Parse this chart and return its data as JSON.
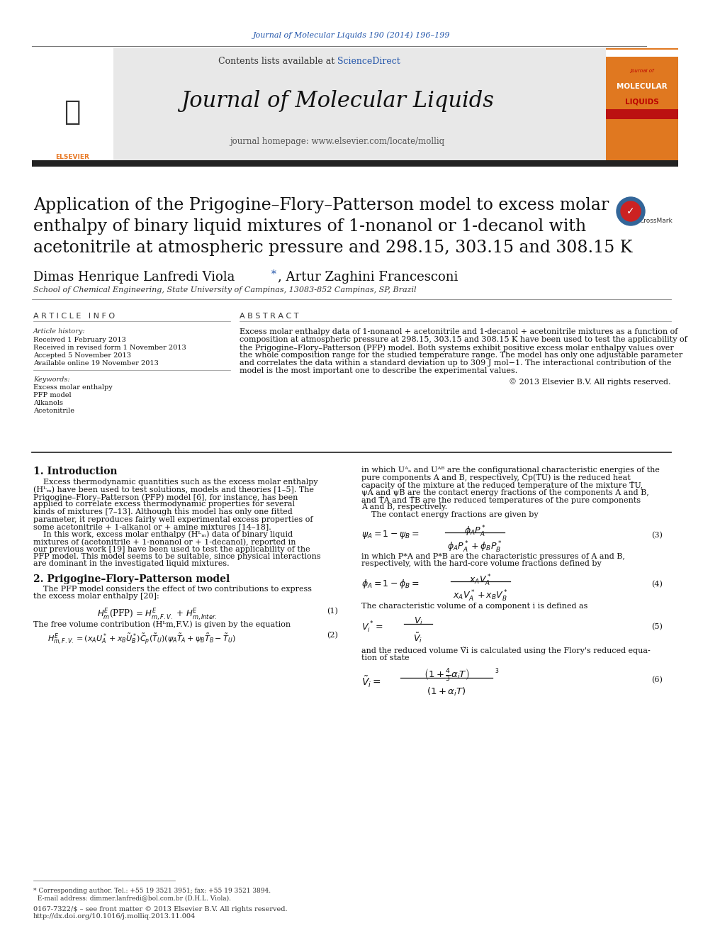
{
  "fig_width": 9.92,
  "fig_height": 13.23,
  "bg_color": "#ffffff",
  "journal_ref_text": "Journal of Molecular Liquids 190 (2014) 196–199",
  "journal_ref_color": "#2255aa",
  "journal_ref_fontsize": 8,
  "contents_text": "Contents lists available at ",
  "sciencedirect_text": "ScienceDirect",
  "sciencedirect_color": "#2255aa",
  "contents_fontsize": 9,
  "journal_title": "Journal of Molecular Liquids",
  "journal_title_fontsize": 22,
  "journal_homepage_text": "journal homepage: www.elsevier.com/locate/molliq",
  "journal_homepage_fontsize": 8.5,
  "header_bg_color": "#e8e8e8",
  "thick_bar_color": "#222222",
  "orange_box_color": "#e07820",
  "paper_title": "Application of the Prigogine–Flory–Patterson model to excess molar\nenthalpy of binary liquid mixtures of 1-nonanol or 1-decanol with\nacetonitrile at atmospheric pressure and 298.15, 303.15 and 308.15 K",
  "paper_title_fontsize": 17,
  "authors_fontsize": 13,
  "affiliation": "School of Chemical Engineering, State University of Campinas, 13083-852 Campinas, SP, Brazil",
  "affiliation_fontsize": 8,
  "article_info_label": "A R T I C L E   I N F O",
  "abstract_label": "A B S T R A C T",
  "section_label_fontsize": 8,
  "article_history_label": "Article history:",
  "history_items": [
    "Received 1 February 2013",
    "Received in revised form 1 November 2013",
    "Accepted 5 November 2013",
    "Available online 19 November 2013"
  ],
  "keywords_label": "Keywords:",
  "keywords": [
    "Excess molar enthalpy",
    "PFP model",
    "Alkanols",
    "Acetonitrile"
  ],
  "abstract_text": "Excess molar enthalpy data of 1-nonanol + acetonitrile and 1-decanol + acetonitrile mixtures as a function of\ncomposition at atmospheric pressure at 298.15, 303.15 and 308.15 K have been used to test the applicability of\nthe Prigogine–Flory–Patterson (PFP) model. Both systems exhibit positive excess molar enthalpy values over\nthe whole composition range for the studied temperature range. The model has only one adjustable parameter\nand correlates the data within a standard deviation up to 309 J mol−1. The interactional contribution of the\nmodel is the most important one to describe the experimental values.",
  "copyright_text": "© 2013 Elsevier B.V. All rights reserved.",
  "abstract_fontsize": 8,
  "intro_heading": "1. Introduction",
  "intro_heading_fontsize": 10,
  "intro_col1_lines": [
    "    Excess thermodynamic quantities such as the excess molar enthalpy",
    "(Hᴸₘ) have been used to test solutions, models and theories [1–5]. The",
    "Prigogine–Flory–Patterson (PFP) model [6], for instance, has been",
    "applied to correlate excess thermodynamic properties for several",
    "kinds of mixtures [7–13]. Although this model has only one fitted",
    "parameter, it reproduces fairly well experimental excess properties of",
    "some acetonitrile + 1-alkanol or + amine mixtures [14–18].",
    "    In this work, excess molar enthalpy (Hᴸₘ) data of binary liquid",
    "mixtures of (acetonitrile + 1-nonanol or + 1-decanol), reported in",
    "our previous work [19] have been used to test the applicability of the",
    "PFP model. This model seems to be suitable, since physical interactions",
    "are dominant in the investigated liquid mixtures."
  ],
  "intro_col2_lines": [
    "in which Uᴬₐ and Uᴬᴮ are the configurational characteristic energies of the",
    "pure components A and B, respectively, C̃p(T̃U) is the reduced heat",
    "capacity of the mixture at the reduced temperature of the mixture T̃U,",
    "ψA and ψB are the contact energy fractions of the components A and B,",
    "and T̃A and T̃B are the reduced temperatures of the pure components",
    "A and B, respectively.",
    "    The contact energy fractions are given by"
  ],
  "intro_fontsize": 8,
  "section2_heading": "2. Prigogine–Flory–Patterson model",
  "section2_heading_fontsize": 10,
  "section2_col1_lines": [
    "    The PFP model considers the effect of two contributions to express",
    "the excess molar enthalpy [20]:"
  ],
  "free_vol_text": "The free volume contribution (Hᴸm,F.V.) is given by the equation",
  "char_pressure_lines": [
    "in which P*A and P*B are the characteristic pressures of A and B,",
    "respectively, with the hard-core volume fractions defined by"
  ],
  "char_volume_text": "The characteristic volume of a component i is defined as",
  "reduced_vol_lines": [
    "and the reduced volume Ṽi is calculated using the Flory's reduced equa-",
    "tion of state"
  ],
  "footnote_lines": [
    "* Corresponding author. Tel.: +55 19 3521 3951; fax: +55 19 3521 3894.",
    "  E-mail address: dimmer.lanfredi@bol.com.br (D.H.L. Viola)."
  ],
  "footer_lines": [
    "0167-7322/$ – see front matter © 2013 Elsevier B.V. All rights reserved.",
    "http://dx.doi.org/10.1016/j.molliq.2013.11.004"
  ],
  "footer_fontsize": 7,
  "body_fontsize": 8
}
